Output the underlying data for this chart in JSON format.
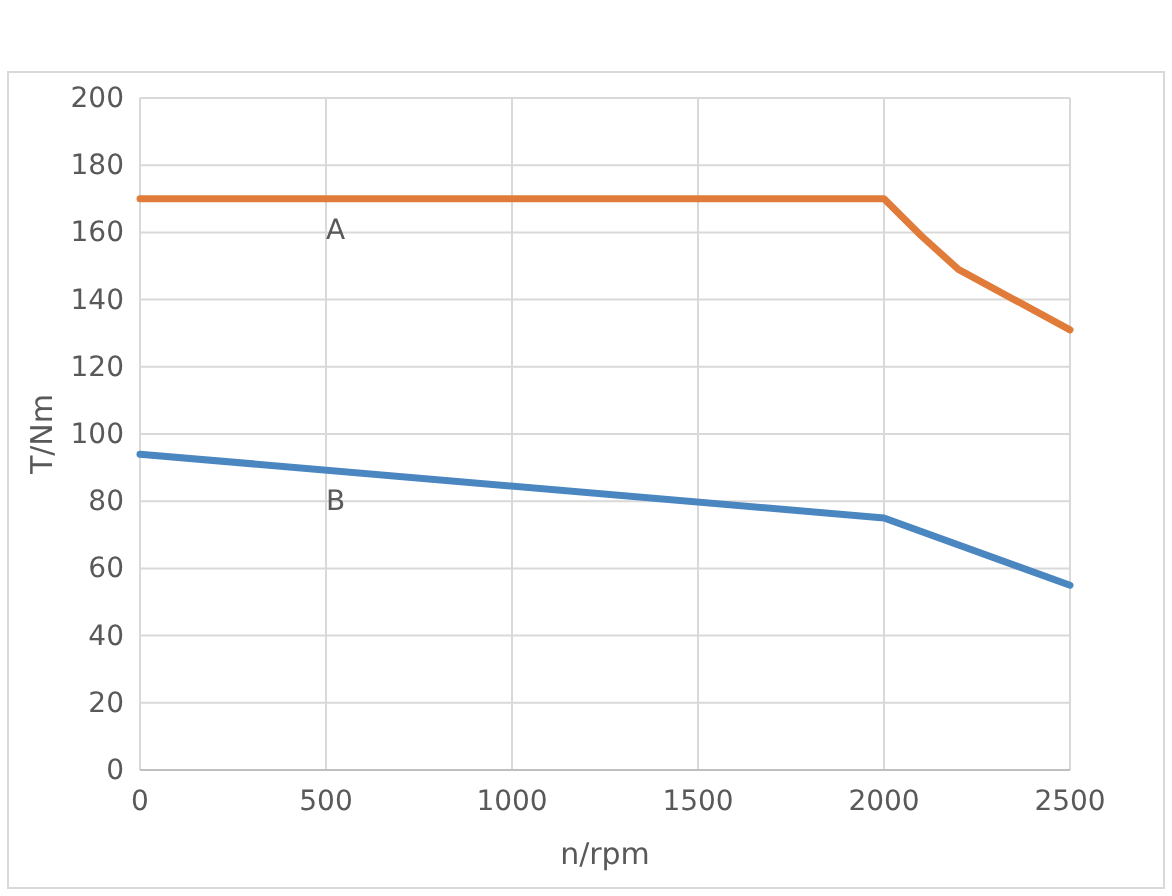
{
  "chart_data": {
    "type": "line",
    "xlabel": "n/rpm",
    "ylabel": "T/Nm",
    "xlim": [
      0,
      2500
    ],
    "xticks": [
      0,
      500,
      1000,
      1500,
      2000,
      2500
    ],
    "ylim": [
      0,
      200
    ],
    "yticks": [
      0,
      20,
      40,
      60,
      80,
      100,
      120,
      140,
      160,
      180,
      200
    ],
    "grid": true,
    "marker": "none",
    "line_style": "solid",
    "series": [
      {
        "name": "A",
        "color": "#e07b39",
        "x": [
          0,
          2000,
          2100,
          2200,
          2500
        ],
        "values": [
          170,
          170,
          159,
          149,
          131
        ]
      },
      {
        "name": "B",
        "color": "#4a86c0",
        "x": [
          0,
          2000,
          2500
        ],
        "values": [
          94,
          75,
          55
        ]
      }
    ]
  }
}
